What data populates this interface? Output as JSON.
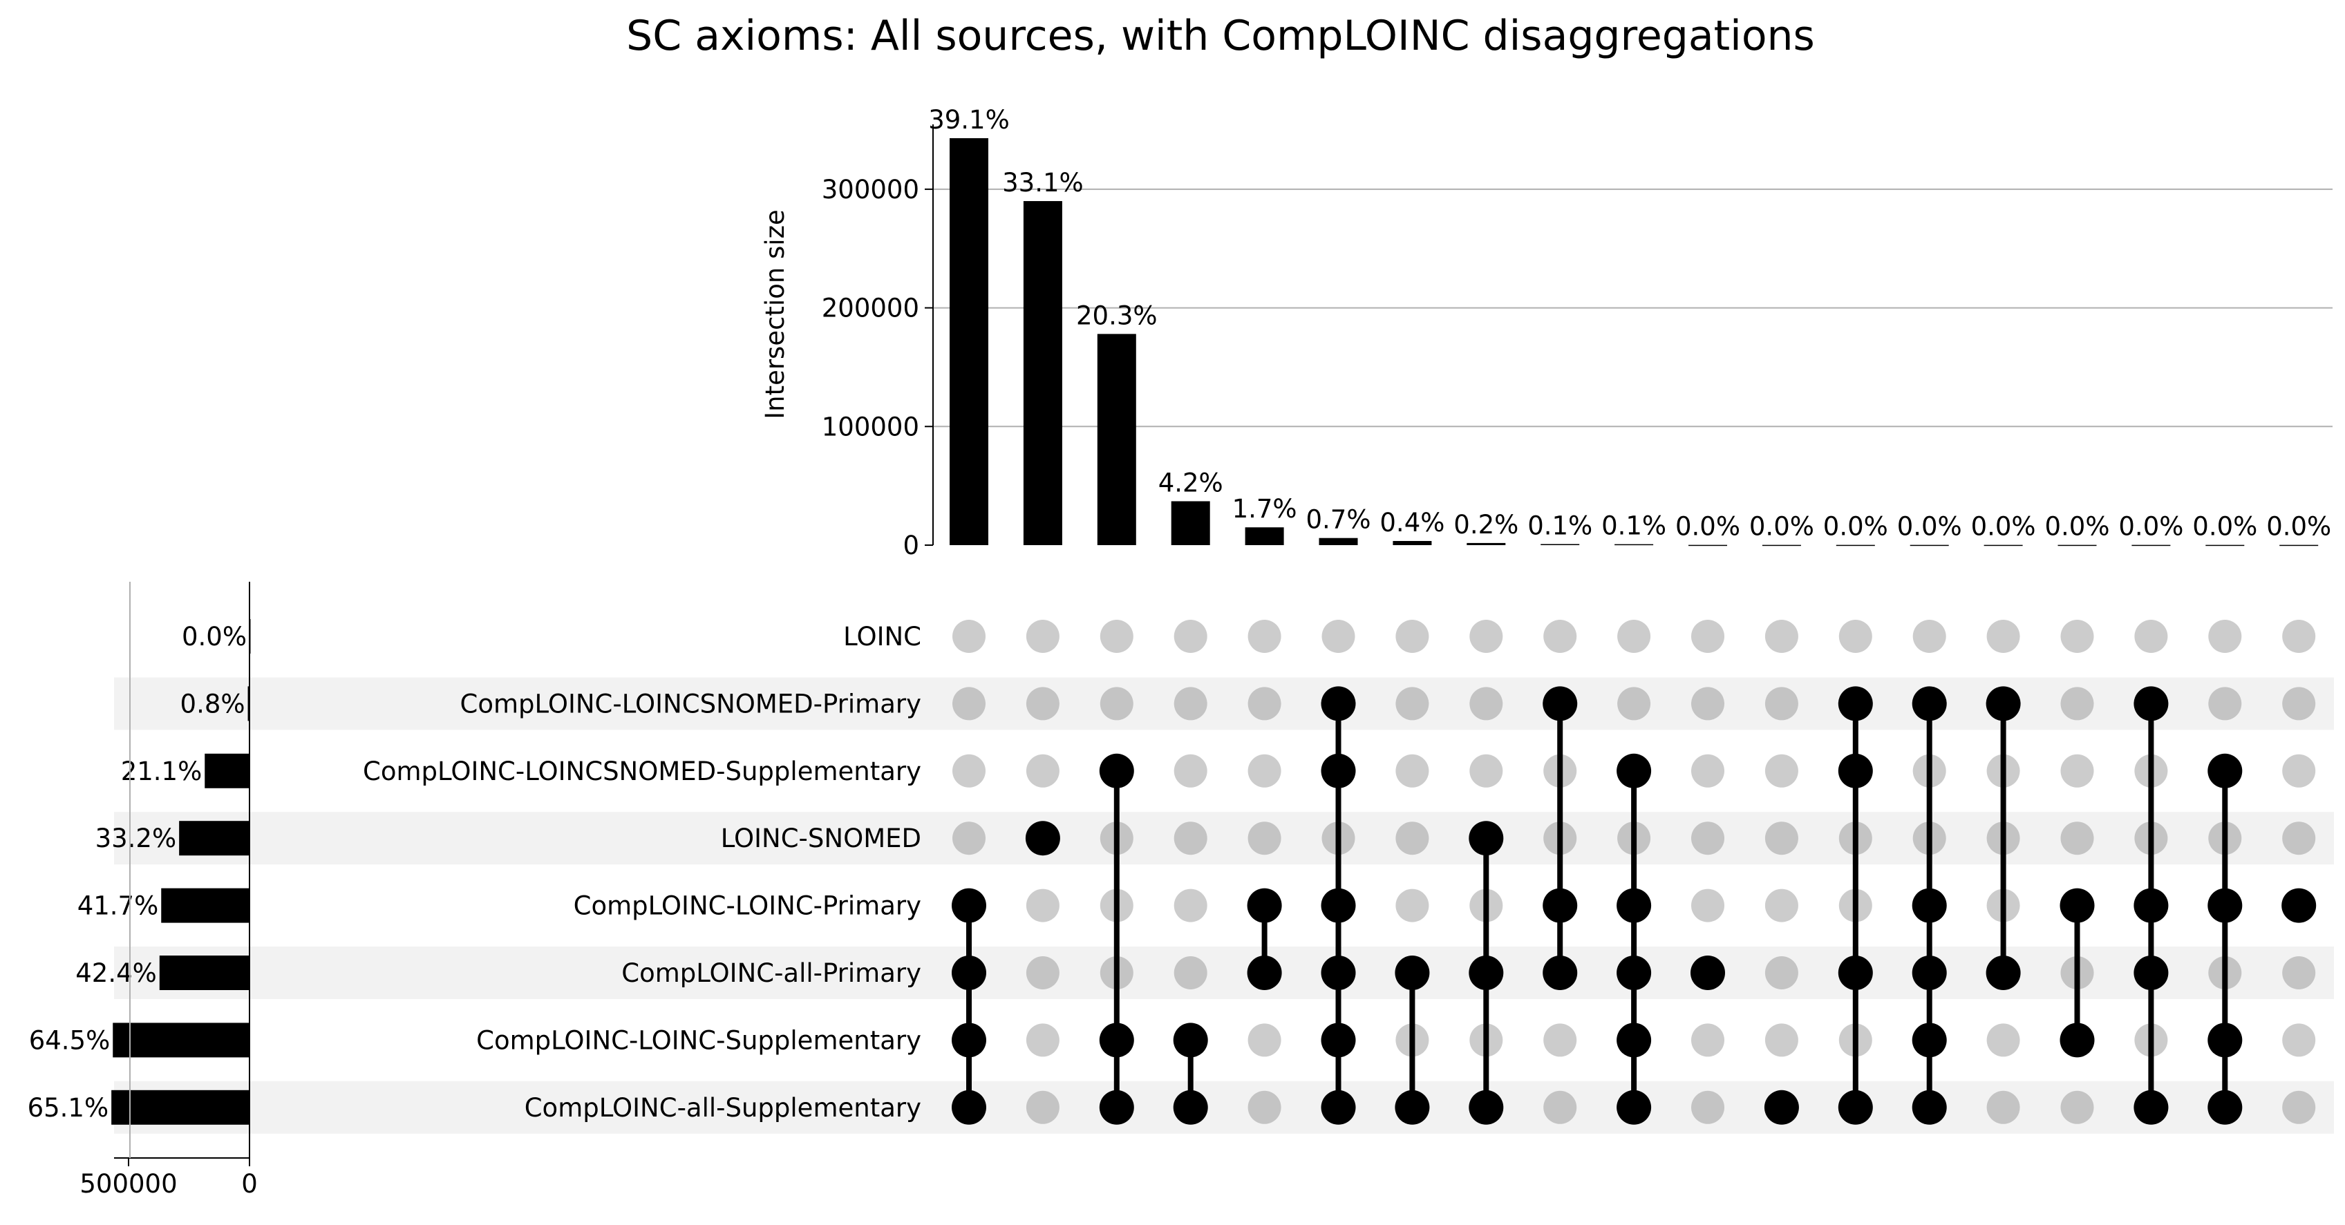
{
  "chart_data": {
    "type": "upset",
    "title": "SC axioms: All sources, with CompLOINC disaggregations",
    "intersection_axis": {
      "ylabel": "Intersection size",
      "ylim": [
        0,
        350000
      ],
      "ticks": [
        0,
        100000,
        200000,
        300000
      ],
      "tick_labels": [
        "0",
        "100000",
        "200000",
        "300000"
      ],
      "grid": true
    },
    "set_size_axis": {
      "xlim": [
        0,
        560000
      ],
      "ticks": [
        500000,
        0
      ],
      "tick_labels": [
        "500000",
        "0"
      ],
      "direction": "right-to-left"
    },
    "sets": [
      {
        "name": "LOINC",
        "size": 0,
        "label": "0.0%"
      },
      {
        "name": "CompLOINC-LOINCSNOMED-Primary",
        "size": 7000,
        "label": "0.8%"
      },
      {
        "name": "CompLOINC-LOINCSNOMED-Supplementary",
        "size": 185000,
        "label": "21.1%"
      },
      {
        "name": "LOINC-SNOMED",
        "size": 291000,
        "label": "33.2%"
      },
      {
        "name": "CompLOINC-LOINC-Primary",
        "size": 365000,
        "label": "41.7%"
      },
      {
        "name": "CompLOINC-all-Primary",
        "size": 372000,
        "label": "42.4%"
      },
      {
        "name": "CompLOINC-LOINC-Supplementary",
        "size": 565000,
        "label": "64.5%"
      },
      {
        "name": "CompLOINC-all-Supplementary",
        "size": 571000,
        "label": "65.1%"
      }
    ],
    "intersections": [
      {
        "value": 343000,
        "label": "39.1%",
        "members": [
          4,
          5,
          6,
          7
        ]
      },
      {
        "value": 290000,
        "label": "33.1%",
        "members": [
          3
        ]
      },
      {
        "value": 178000,
        "label": "20.3%",
        "members": [
          2,
          6,
          7
        ]
      },
      {
        "value": 37000,
        "label": "4.2%",
        "members": [
          6,
          7
        ]
      },
      {
        "value": 15000,
        "label": "1.7%",
        "members": [
          4,
          5
        ]
      },
      {
        "value": 6000,
        "label": "0.7%",
        "members": [
          1,
          2,
          4,
          5,
          6,
          7
        ]
      },
      {
        "value": 3500,
        "label": "0.4%",
        "members": [
          5,
          7
        ]
      },
      {
        "value": 1800,
        "label": "0.2%",
        "members": [
          3,
          5,
          7
        ]
      },
      {
        "value": 900,
        "label": "0.1%",
        "members": [
          1,
          4,
          5
        ]
      },
      {
        "value": 800,
        "label": "0.1%",
        "members": [
          2,
          4,
          5,
          6,
          7
        ]
      },
      {
        "value": 200,
        "label": "0.0%",
        "members": [
          5
        ]
      },
      {
        "value": 200,
        "label": "0.0%",
        "members": [
          7
        ]
      },
      {
        "value": 200,
        "label": "0.0%",
        "members": [
          1,
          2,
          5,
          7
        ]
      },
      {
        "value": 200,
        "label": "0.0%",
        "members": [
          1,
          4,
          5,
          6,
          7
        ]
      },
      {
        "value": 200,
        "label": "0.0%",
        "members": [
          1,
          5
        ]
      },
      {
        "value": 200,
        "label": "0.0%",
        "members": [
          4,
          6
        ]
      },
      {
        "value": 200,
        "label": "0.0%",
        "members": [
          1,
          4,
          5,
          7
        ]
      },
      {
        "value": 200,
        "label": "0.0%",
        "members": [
          2,
          4,
          6,
          7
        ]
      },
      {
        "value": 200,
        "label": "0.0%",
        "members": [
          4
        ]
      }
    ]
  },
  "colors": {
    "bar": "#000000",
    "dot_active": "#000000",
    "dot_inactive": "#cccccc",
    "dot_inactive_shaded": "#c4c4c4",
    "shade": "#f2f2f2",
    "grid": "#b0b0b0"
  }
}
